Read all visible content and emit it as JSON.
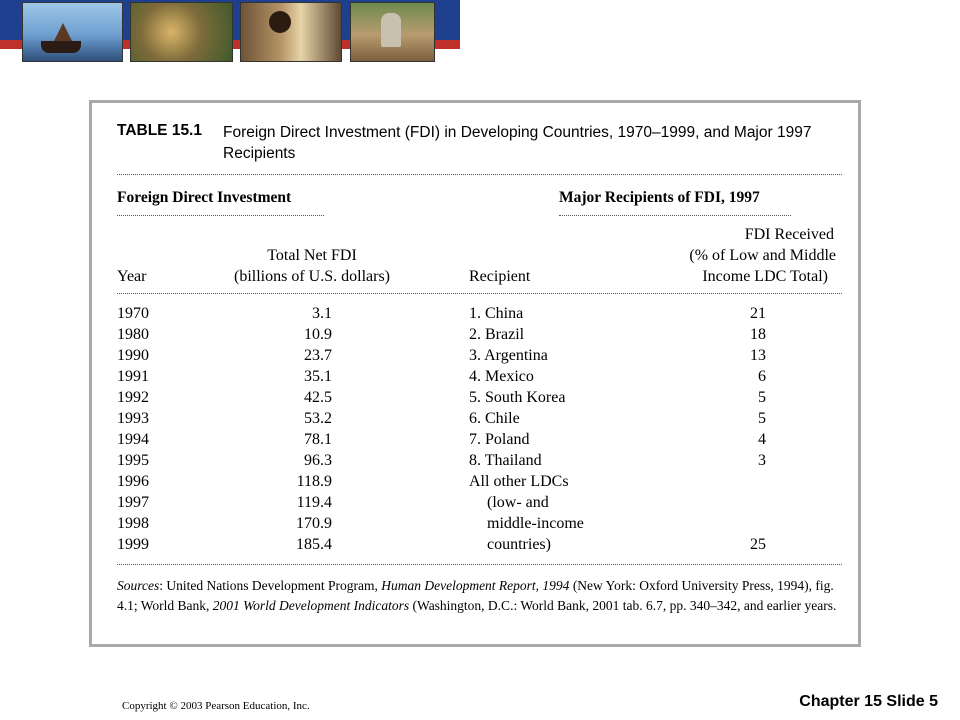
{
  "table": {
    "label": "TABLE 15.1",
    "title": "Foreign Direct Investment (FDI) in Developing Countries, 1970–1999, and Major 1997 Recipients",
    "left_section": "Foreign Direct Investment",
    "right_section": "Major Recipients of FDI, 1997",
    "headers": {
      "year": "Year",
      "fdi_line1": "Total Net FDI",
      "fdi_line2": "(billions of U.S. dollars)",
      "recipient": "Recipient",
      "pct_line1": "FDI Received",
      "pct_line2": "(% of Low and Middle",
      "pct_line3": "Income LDC Total)"
    },
    "fdi_rows": [
      {
        "year": "1970",
        "value": "3.1"
      },
      {
        "year": "1980",
        "value": "10.9"
      },
      {
        "year": "1990",
        "value": "23.7"
      },
      {
        "year": "1991",
        "value": "35.1"
      },
      {
        "year": "1992",
        "value": "42.5"
      },
      {
        "year": "1993",
        "value": "53.2"
      },
      {
        "year": "1994",
        "value": "78.1"
      },
      {
        "year": "1995",
        "value": "96.3"
      },
      {
        "year": "1996",
        "value": "118.9"
      },
      {
        "year": "1997",
        "value": "119.4"
      },
      {
        "year": "1998",
        "value": "170.9"
      },
      {
        "year": "1999",
        "value": "185.4"
      }
    ],
    "recipient_rows": [
      {
        "name": "1. China",
        "pct": "21"
      },
      {
        "name": "2. Brazil",
        "pct": "18"
      },
      {
        "name": "3. Argentina",
        "pct": "13"
      },
      {
        "name": "4. Mexico",
        "pct": "6"
      },
      {
        "name": "5. South Korea",
        "pct": "5"
      },
      {
        "name": "6. Chile",
        "pct": "5"
      },
      {
        "name": "7. Poland",
        "pct": "4"
      },
      {
        "name": "8. Thailand",
        "pct": "3"
      },
      {
        "name": "All other LDCs",
        "pct": ""
      },
      {
        "name": "(low- and",
        "pct": ""
      },
      {
        "name": "middle-income",
        "pct": ""
      },
      {
        "name": "countries)",
        "pct": "25"
      }
    ],
    "sources": {
      "label": "Sources",
      "p1": ": United Nations Development Program, ",
      "i1": "Human Development Report, 1994",
      "p2": " (New York: Oxford University Press, 1994), fig. 4.1; World Bank, ",
      "i2": "2001 World Development Indicators",
      "p3": " (Washington, D.C.: World Bank, 2001 tab. 6.7, pp. 340–342, and earlier years."
    }
  },
  "footer": {
    "copyright": "Copyright © 2003 Pearson Education, Inc.",
    "slide": "Chapter 15 Slide 5"
  }
}
